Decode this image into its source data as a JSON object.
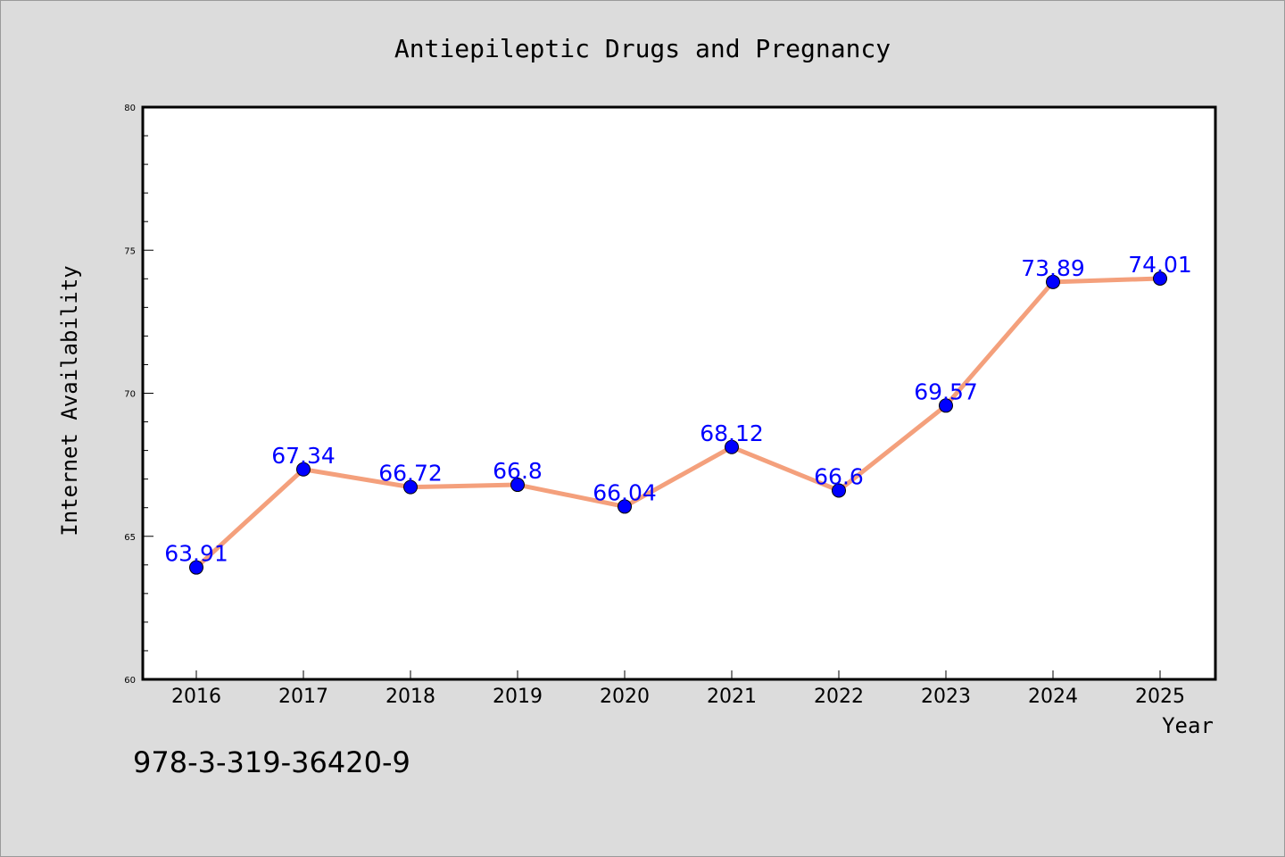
{
  "chart_data": {
    "type": "line",
    "title": "Antiepileptic Drugs and Pregnancy",
    "xlabel": "Year",
    "ylabel": "Internet Availability",
    "categories": [
      "2016",
      "2017",
      "2018",
      "2019",
      "2020",
      "2021",
      "2022",
      "2023",
      "2024",
      "2025"
    ],
    "series": [
      {
        "values": [
          63.91,
          67.34,
          66.72,
          66.8,
          66.04,
          68.12,
          66.6,
          69.57,
          73.89,
          74.01
        ],
        "labels": [
          "63.91",
          "67.34",
          "66.72",
          "66.8",
          "66.04",
          "68.12",
          "66.6",
          "69.57",
          "73.89",
          "74.01"
        ]
      }
    ],
    "ylim": [
      60,
      80
    ],
    "yticks": [
      "60",
      "65",
      "70",
      "75",
      "80"
    ],
    "grid": false,
    "legend": "none",
    "colors": {
      "line": "#f4a07c",
      "marker": "#0000ff",
      "data_label": "#0000ff",
      "plot_background": "#ffffff",
      "figure_background": "#dcdcdc"
    }
  },
  "annotation": {
    "text": "978-3-319-36420-9"
  }
}
